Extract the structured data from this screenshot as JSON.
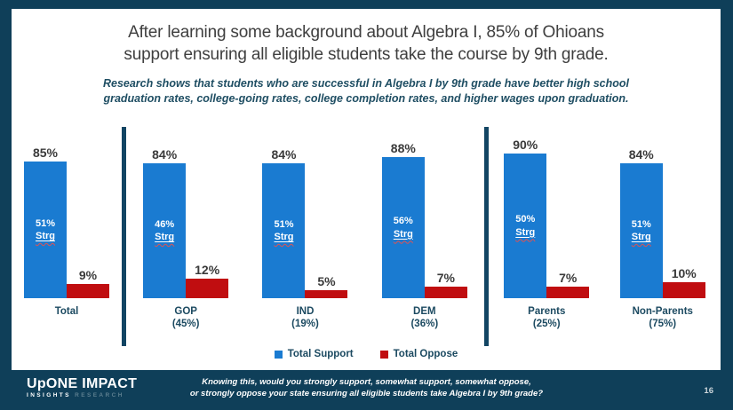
{
  "slide": {
    "title": "After learning some background about Algebra I, 85% of Ohioans\nsupport ensuring all eligible students take the course by 9th grade.",
    "subtitle": "Research shows that students who are successful in Algebra I by 9th grade have better high school\ngraduation rates, college-going rates, college completion rates, and higher wages upon graduation."
  },
  "chart_data": {
    "type": "bar",
    "unit": "%",
    "ylim": [
      0,
      100
    ],
    "legend": [
      "Total Support",
      "Total Oppose"
    ],
    "legend_position": "bottom",
    "strong_label": "Strg",
    "colors": {
      "support_blue": "#1a7bd1",
      "oppose_red": "#c00d10",
      "divider_navy": "#124563"
    },
    "groups": [
      {
        "label": "Total",
        "sublabel": "",
        "total_support": 85,
        "strongly_support": 51,
        "total_oppose": 9
      },
      {
        "label": "GOP",
        "sublabel": "(45%)",
        "total_support": 84,
        "strongly_support": 46,
        "total_oppose": 12
      },
      {
        "label": "IND",
        "sublabel": "(19%)",
        "total_support": 84,
        "strongly_support": 51,
        "total_oppose": 5
      },
      {
        "label": "DEM",
        "sublabel": "(36%)",
        "total_support": 88,
        "strongly_support": 56,
        "total_oppose": 7
      },
      {
        "label": "Parents",
        "sublabel": "(25%)",
        "total_support": 90,
        "strongly_support": 50,
        "total_oppose": 7
      },
      {
        "label": "Non-Parents",
        "sublabel": "(75%)",
        "total_support": 84,
        "strongly_support": 51,
        "total_oppose": 10
      }
    ],
    "sections": [
      [
        0
      ],
      [
        1,
        2,
        3
      ],
      [
        4,
        5
      ]
    ]
  },
  "footer": {
    "question": "Knowing this, would you strongly support, somewhat support, somewhat oppose,\nor strongly oppose your state ensuring all eligible students take Algebra I by 9th grade?",
    "page_number": "16",
    "logo": {
      "line1": "UpONE IMPACT",
      "insights": "INSIGHTS",
      "research": "RESEARCH"
    }
  },
  "colors": {
    "frame_navy": "#0f3f59",
    "panel_white": "#ffffff"
  }
}
